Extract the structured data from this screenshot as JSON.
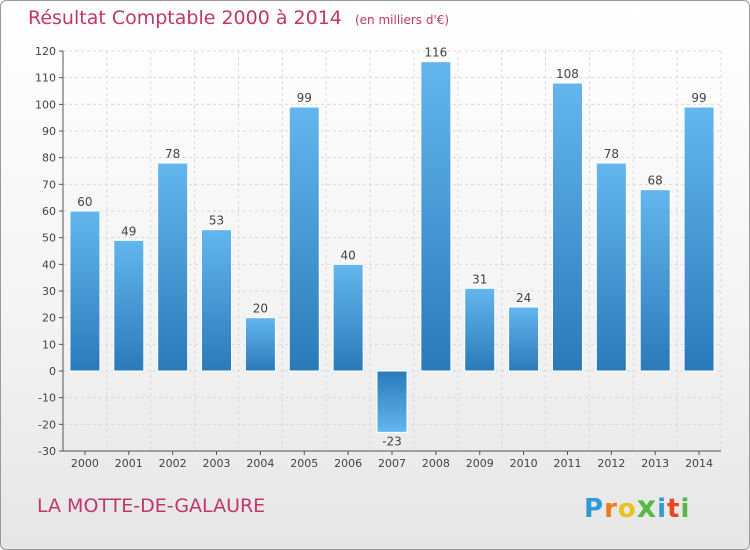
{
  "chart_data": {
    "type": "bar",
    "title": "Résultat Comptable 2000 à 2014",
    "subtitle": "(en milliers d'€)",
    "categories": [
      "2000",
      "2001",
      "2002",
      "2003",
      "2004",
      "2005",
      "2006",
      "2007",
      "2008",
      "2009",
      "2010",
      "2011",
      "2012",
      "2013",
      "2014"
    ],
    "values": [
      60,
      49,
      78,
      53,
      20,
      99,
      40,
      -23,
      116,
      31,
      24,
      108,
      78,
      68,
      99
    ],
    "yticks": [
      120,
      110,
      100,
      90,
      80,
      70,
      60,
      50,
      40,
      30,
      20,
      10,
      0,
      -10,
      -20,
      -30
    ],
    "ylim": [
      -30,
      120
    ],
    "xlabel": "",
    "ylabel": "",
    "grid": true,
    "colors": {
      "bar_light": "#63b6ee",
      "bar_dark": "#2a7ab9",
      "grid": "#d9d9d9",
      "axis": "#555555"
    }
  },
  "footer": {
    "commune": "LA MOTTE-DE-GALAURE",
    "brand": "Proxiti",
    "brand_letters": [
      "P",
      "r",
      "o",
      "x",
      "i",
      "t",
      "i"
    ],
    "brand_colors": [
      "#2f9ad8",
      "#f07a1a",
      "#e8c31c",
      "#58b847",
      "#2f9ad8",
      "#e8481d",
      "#58b847"
    ]
  },
  "colors": {
    "accent": "#c2366b"
  }
}
